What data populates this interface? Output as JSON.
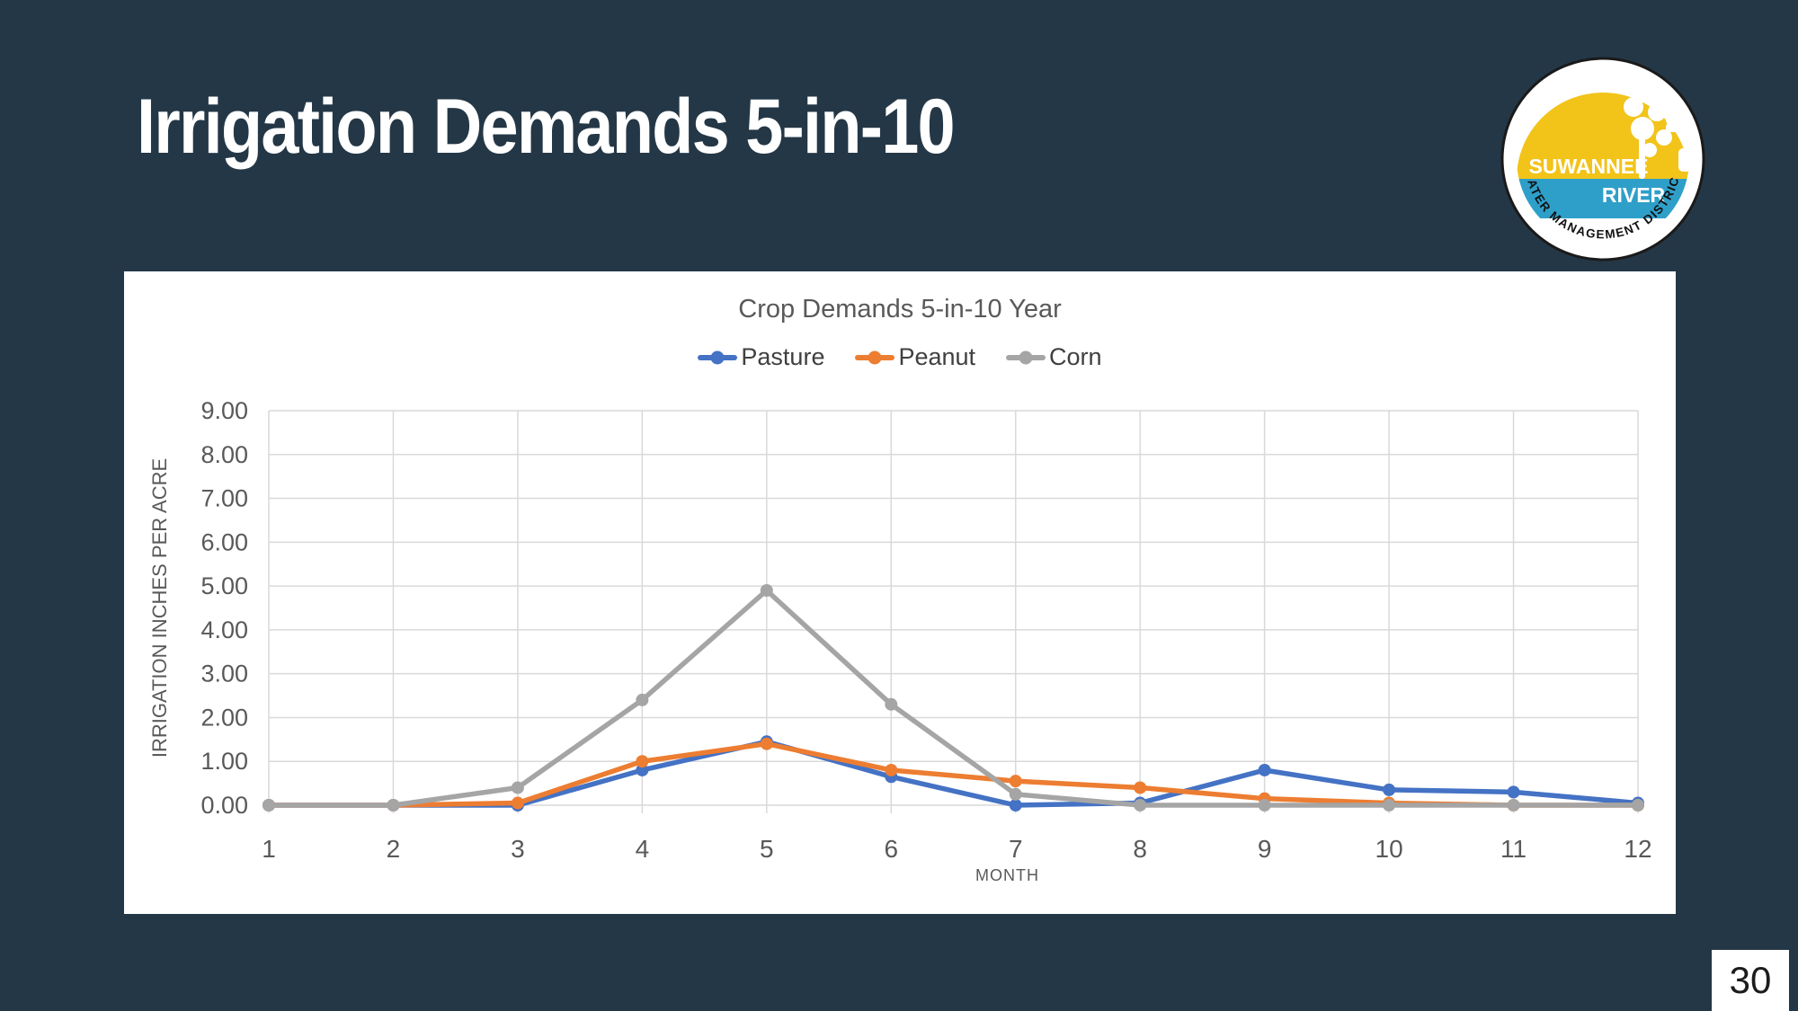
{
  "slide": {
    "title": "Irrigation Demands 5-in-10",
    "page_number": "30",
    "background_color": "#243746"
  },
  "logo": {
    "name": "Suwannee River Water Management District seal",
    "line1": "SUWANNEE",
    "line2": "RIVER",
    "arc_text": "WATER MANAGEMENT DISTRICT",
    "colors": {
      "yellow": "#F2C319",
      "water_blue": "#2E9FC9",
      "ring": "#ffffff",
      "outline": "#1a1a1a"
    }
  },
  "chart_data": {
    "type": "line",
    "title": "Crop Demands 5-in-10 Year",
    "xlabel": "MONTH",
    "ylabel": "IRRIGATION INCHES PER ACRE",
    "categories": [
      1,
      2,
      3,
      4,
      5,
      6,
      7,
      8,
      9,
      10,
      11,
      12
    ],
    "series": [
      {
        "name": "Pasture",
        "color": "#4472C4",
        "values": [
          0.0,
          0.0,
          0.0,
          0.8,
          1.45,
          0.65,
          0.0,
          0.05,
          0.8,
          0.35,
          0.3,
          0.05
        ]
      },
      {
        "name": "Peanut",
        "color": "#ED7D31",
        "values": [
          0.0,
          0.0,
          0.05,
          1.0,
          1.4,
          0.8,
          0.55,
          0.4,
          0.15,
          0.05,
          0.0,
          0.0
        ]
      },
      {
        "name": "Corn",
        "color": "#A5A5A5",
        "values": [
          0.0,
          0.0,
          0.4,
          2.4,
          4.9,
          2.3,
          0.25,
          0.0,
          0.0,
          0.0,
          0.0,
          0.0
        ]
      }
    ],
    "ylim": [
      0,
      9
    ],
    "ytick_step": 1,
    "ytick_decimals": 2,
    "grid": true,
    "legend_position": "top",
    "gridline_color": "#D9D9D9",
    "axis_text_color": "#595959"
  }
}
